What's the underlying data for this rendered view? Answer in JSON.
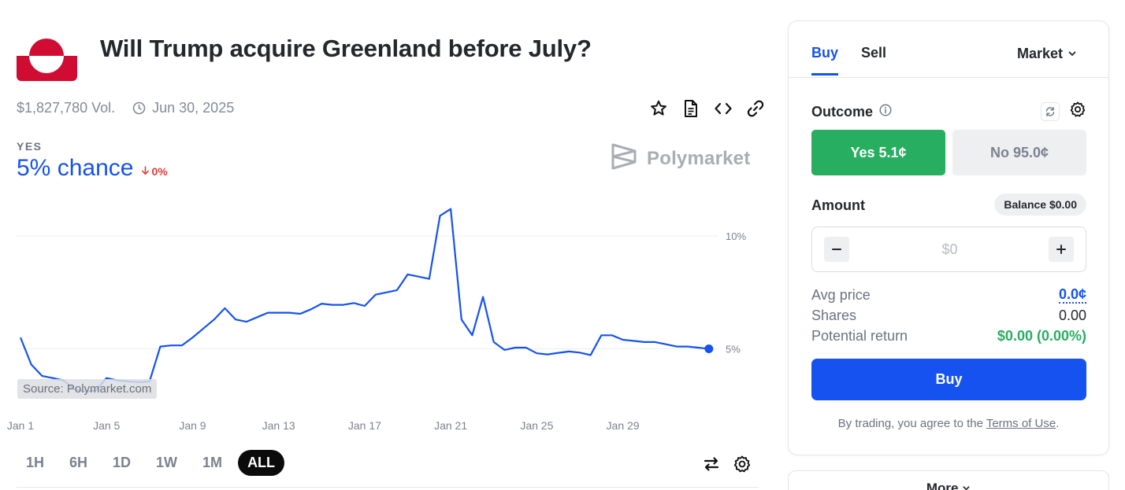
{
  "market": {
    "title": "Will Trump acquire Greenland before July?",
    "volume": "$1,827,780 Vol.",
    "end_date": "Jun 30, 2025"
  },
  "toolbar": {
    "icons": [
      "star-icon",
      "document-icon",
      "code-icon",
      "link-icon"
    ]
  },
  "probability": {
    "outcome_label": "YES",
    "chance_text": "5% chance",
    "delta_text": "0%",
    "accent_color": "#1652f0",
    "delta_color": "#e23b3b"
  },
  "brand": {
    "name": "Polymarket"
  },
  "chart_data": {
    "type": "line",
    "title": "",
    "xlabel": "",
    "ylabel": "",
    "x_tick_labels": [
      "Jan 1",
      "Jan 5",
      "Jan 9",
      "Jan 13",
      "Jan 17",
      "Jan 21",
      "Jan 25",
      "Jan 29"
    ],
    "y_tick_labels": [
      "10%",
      "5%"
    ],
    "y_ticks": [
      10,
      5
    ],
    "ylim": [
      2.4,
      11.4
    ],
    "xlim": [
      0,
      32.3
    ],
    "grid": true,
    "series": [
      {
        "color": "#1652f0",
        "x": [
          0,
          0.5,
          1,
          1.5,
          2,
          2.5,
          3,
          3.5,
          4,
          4.5,
          5,
          5.5,
          6,
          6.5,
          7,
          7.5,
          8,
          8.5,
          9,
          9.5,
          10,
          10.5,
          11,
          11.5,
          12,
          12.5,
          13,
          13.5,
          14,
          14.5,
          15,
          15.5,
          16,
          16.5,
          17,
          17.5,
          18,
          18.5,
          19,
          19.5,
          20,
          20.5,
          21,
          21.5,
          22,
          22.5,
          23,
          23.5,
          24,
          24.5,
          25,
          25.5,
          26,
          26.5,
          27,
          27.5,
          28,
          28.5,
          29,
          29.5,
          30,
          30.5,
          31,
          31.5,
          32
        ],
        "y": [
          5.5,
          4.3,
          3.8,
          3.7,
          3.6,
          3.2,
          3.1,
          3.15,
          3.7,
          3.6,
          3.55,
          3.52,
          3.55,
          5.1,
          5.15,
          5.15,
          5.5,
          5.9,
          6.3,
          6.8,
          6.3,
          6.2,
          6.4,
          6.6,
          6.6,
          6.6,
          6.55,
          6.75,
          7.0,
          6.95,
          6.95,
          7.03,
          6.9,
          7.4,
          7.5,
          7.6,
          8.3,
          8.2,
          8.1,
          10.9,
          11.2,
          6.3,
          5.6,
          7.3,
          5.3,
          4.95,
          5.05,
          5.05,
          4.8,
          4.75,
          4.82,
          4.88,
          4.83,
          4.72,
          5.6,
          5.6,
          5.4,
          5.35,
          5.3,
          5.3,
          5.2,
          5.1,
          5.1,
          5.05,
          5.0
        ]
      }
    ],
    "source_text": "Source: Polymarket.com"
  },
  "ranges": [
    "1H",
    "6H",
    "1D",
    "1W",
    "1M",
    "ALL"
  ],
  "active_range": "ALL",
  "trade": {
    "tabs": [
      "Buy",
      "Sell"
    ],
    "active_tab": "Buy",
    "order_type": "Market",
    "outcome_label": "Outcome",
    "yes_button": "Yes 5.1¢",
    "no_button": "No 95.0¢",
    "amount_label": "Amount",
    "balance": "Balance $0.00",
    "amount_placeholder": "$0",
    "stats": [
      {
        "label": "Avg price",
        "value": "0.0¢"
      },
      {
        "label": "Shares",
        "value": "0.00"
      },
      {
        "label": "Potential return",
        "value": "$0.00 (0.00%)"
      }
    ],
    "buy_button": "Buy",
    "terms_prefix": "By trading, you agree to the ",
    "terms_link": "Terms of Use",
    "terms_suffix": ".",
    "colors": {
      "yes": "#27ae60",
      "buy": "#1652f0"
    }
  },
  "more": {
    "label": "More"
  }
}
